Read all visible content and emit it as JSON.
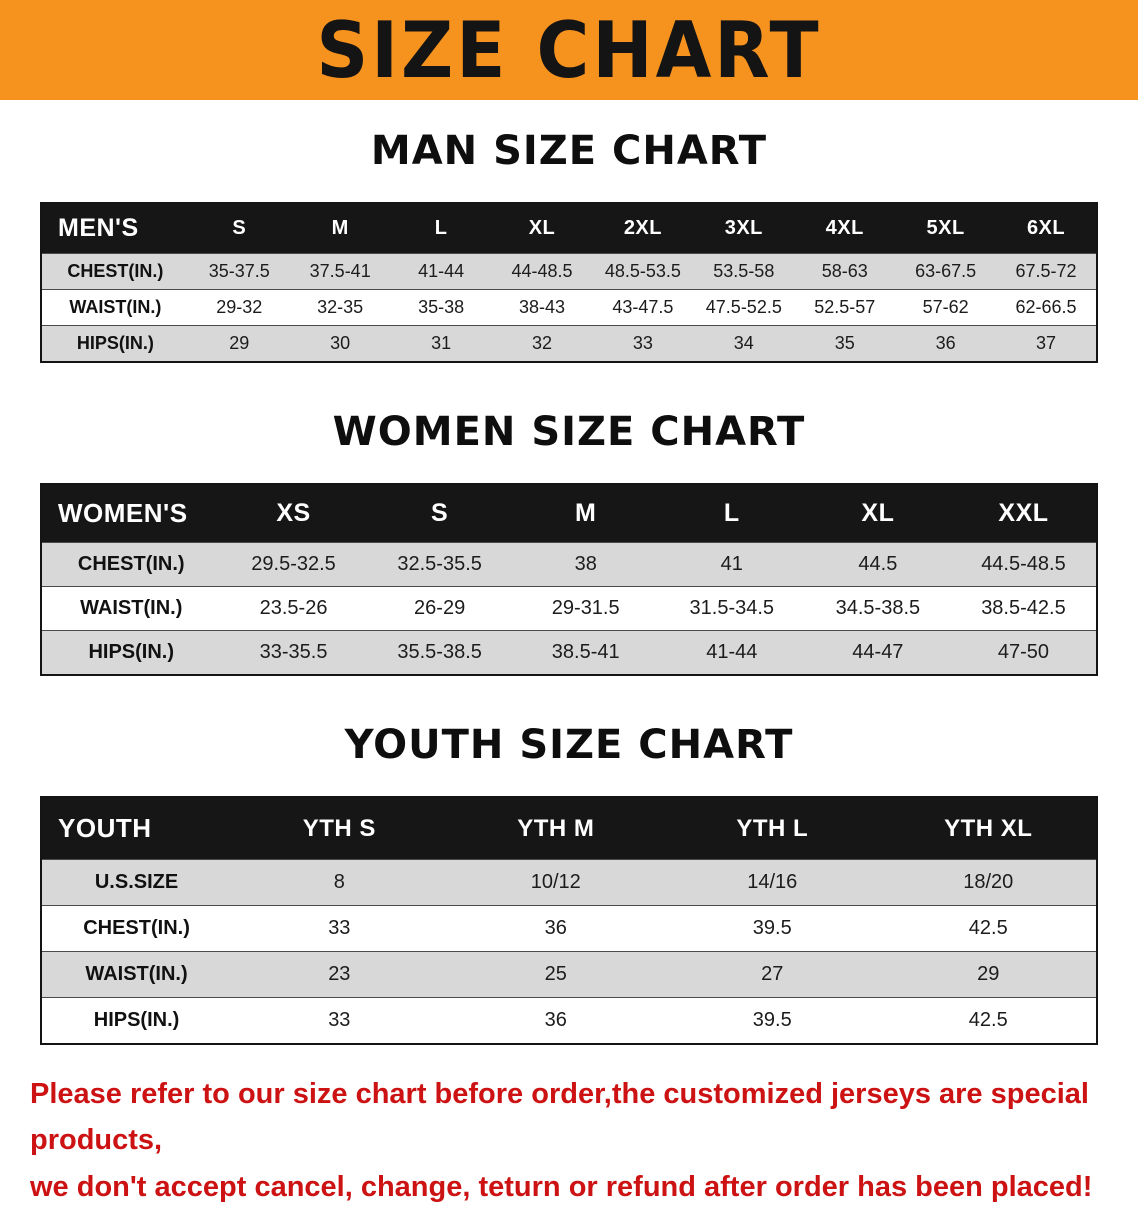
{
  "banner": {
    "title": "SIZE CHART",
    "bg_color": "#F6921E"
  },
  "sections": [
    {
      "id": "men",
      "heading": "MAN SIZE CHART",
      "table": {
        "header": [
          "MEN'S",
          "S",
          "M",
          "L",
          "XL",
          "2XL",
          "3XL",
          "4XL",
          "5XL",
          "6XL"
        ],
        "rows": [
          {
            "label": "CHEST(IN.)",
            "values": [
              "35-37.5",
              "37.5-41",
              "41-44",
              "44-48.5",
              "48.5-53.5",
              "53.5-58",
              "58-63",
              "63-67.5",
              "67.5-72"
            ]
          },
          {
            "label": "WAIST(IN.)",
            "values": [
              "29-32",
              "32-35",
              "35-38",
              "38-43",
              "43-47.5",
              "47.5-52.5",
              "52.5-57",
              "57-62",
              "62-66.5"
            ]
          },
          {
            "label": "HIPS(IN.)",
            "values": [
              "29",
              "30",
              "31",
              "32",
              "33",
              "34",
              "35",
              "36",
              "37"
            ]
          }
        ]
      }
    },
    {
      "id": "women",
      "heading": "WOMEN SIZE CHART",
      "table": {
        "header": [
          "WOMEN'S",
          "XS",
          "S",
          "M",
          "L",
          "XL",
          "XXL"
        ],
        "rows": [
          {
            "label": "CHEST(IN.)",
            "values": [
              "29.5-32.5",
              "32.5-35.5",
              "38",
              "41",
              "44.5",
              "44.5-48.5"
            ]
          },
          {
            "label": "WAIST(IN.)",
            "values": [
              "23.5-26",
              "26-29",
              "29-31.5",
              "31.5-34.5",
              "34.5-38.5",
              "38.5-42.5"
            ]
          },
          {
            "label": "HIPS(IN.)",
            "values": [
              "33-35.5",
              "35.5-38.5",
              "38.5-41",
              "41-44",
              "44-47",
              "47-50"
            ]
          }
        ]
      }
    },
    {
      "id": "youth",
      "heading": "YOUTH SIZE CHART",
      "table": {
        "header": [
          "YOUTH",
          "YTH S",
          "YTH M",
          "YTH L",
          "YTH XL"
        ],
        "rows": [
          {
            "label": "U.S.SIZE",
            "values": [
              "8",
              "10/12",
              "14/16",
              "18/20"
            ]
          },
          {
            "label": "CHEST(IN.)",
            "values": [
              "33",
              "36",
              "39.5",
              "42.5"
            ]
          },
          {
            "label": "WAIST(IN.)",
            "values": [
              "23",
              "25",
              "27",
              "29"
            ]
          },
          {
            "label": "HIPS(IN.)",
            "values": [
              "33",
              "36",
              "39.5",
              "42.5"
            ]
          }
        ]
      }
    }
  ],
  "disclaimer": {
    "lines": [
      "Please refer to our size chart before order,the customized jerseys are special products,",
      "we don't accept cancel, change, teturn or refund after order has been placed!"
    ],
    "text_color": "#CC1212"
  }
}
